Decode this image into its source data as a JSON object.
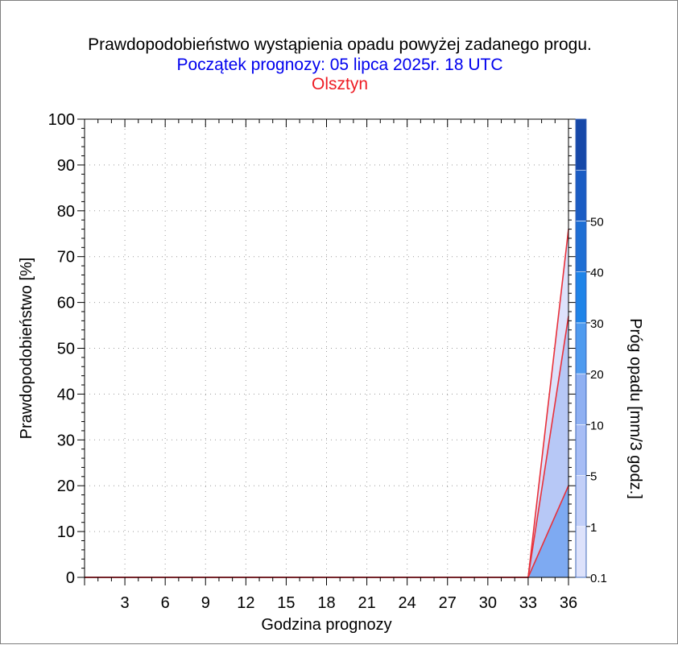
{
  "header": {
    "title": "Prawdopodobieństwo wystąpienia opadu powyżej zadanego progu.",
    "subtitle": "Początek prognozy: 05 lipca 2025r. 18 UTC",
    "location": "Olsztyn"
  },
  "colors": {
    "subtitle": "#0000ee",
    "location": "#ee1c24",
    "line": "#e8303a",
    "grid": "#9a9a9a"
  },
  "chart_data": {
    "type": "area",
    "xlabel": "Godzina prognozy",
    "ylabel": "Prawdopodobieństwo [%]",
    "xlim": [
      0,
      36
    ],
    "ylim": [
      0,
      100
    ],
    "x_ticks": [
      3,
      6,
      9,
      12,
      15,
      18,
      21,
      24,
      27,
      30,
      33,
      36
    ],
    "y_ticks": [
      0,
      10,
      20,
      30,
      40,
      50,
      60,
      70,
      80,
      90,
      100
    ],
    "grid": true,
    "x": [
      0,
      33,
      36
    ],
    "series": [
      {
        "threshold": 0.1,
        "values": [
          0,
          0,
          76
        ],
        "color": "#dde2fb"
      },
      {
        "threshold": 1,
        "values": [
          0,
          0,
          57
        ],
        "color": "#b7c8f6"
      },
      {
        "threshold": 5,
        "values": [
          0,
          0,
          20
        ],
        "color": "#7eaaf2"
      }
    ],
    "colorbar": {
      "label": "Próg opadu [mm/3 godz.]",
      "tick_labels": [
        "0.1",
        "1",
        "5",
        "10",
        "20",
        "30",
        "40",
        "50"
      ],
      "colors": [
        "#dde2fb",
        "#c2cff8",
        "#a7bdf5",
        "#8fb0f2",
        "#4f9bef",
        "#1f84e8",
        "#1f6fd4",
        "#1a5cc4",
        "#1648a8"
      ]
    }
  }
}
